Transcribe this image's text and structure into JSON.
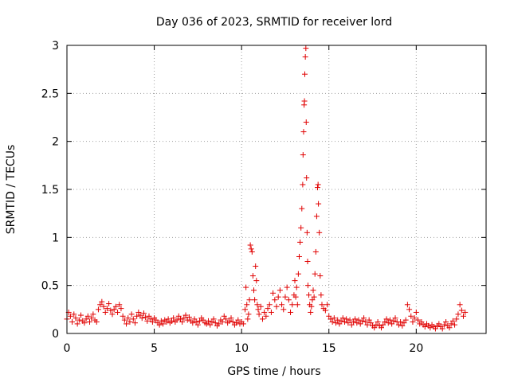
{
  "chart_data": {
    "type": "scatter",
    "title": "Day 036 of 2023, SRMTID for receiver lord",
    "xlabel": "GPS time / hours",
    "ylabel": "SRMTID / TECUs",
    "xlim": [
      0,
      24
    ],
    "ylim": [
      0,
      3
    ],
    "xticks": [
      0,
      5,
      10,
      15,
      20
    ],
    "xtick_labels": [
      "0",
      "5",
      "10",
      "15",
      "20"
    ],
    "yticks": [
      0,
      0.5,
      1,
      1.5,
      2,
      2.5,
      3
    ],
    "ytick_labels": [
      "0",
      "0.5",
      "1",
      "1.5",
      "2",
      "2.5",
      "3"
    ],
    "grid": true,
    "marker": "+",
    "color": "#e00000",
    "series": [
      {
        "name": "SRMTID",
        "points": [
          [
            0.0,
            0.15
          ],
          [
            0.1,
            0.22
          ],
          [
            0.2,
            0.18
          ],
          [
            0.3,
            0.12
          ],
          [
            0.4,
            0.2
          ],
          [
            0.5,
            0.16
          ],
          [
            0.6,
            0.1
          ],
          [
            0.7,
            0.14
          ],
          [
            0.8,
            0.19
          ],
          [
            0.9,
            0.13
          ],
          [
            1.0,
            0.11
          ],
          [
            1.1,
            0.15
          ],
          [
            1.2,
            0.18
          ],
          [
            1.3,
            0.12
          ],
          [
            1.4,
            0.16
          ],
          [
            1.5,
            0.2
          ],
          [
            1.6,
            0.14
          ],
          [
            1.7,
            0.12
          ],
          [
            1.8,
            0.25
          ],
          [
            1.9,
            0.3
          ],
          [
            2.0,
            0.33
          ],
          [
            2.1,
            0.28
          ],
          [
            2.2,
            0.22
          ],
          [
            2.3,
            0.26
          ],
          [
            2.4,
            0.31
          ],
          [
            2.5,
            0.24
          ],
          [
            2.6,
            0.2
          ],
          [
            2.7,
            0.25
          ],
          [
            2.8,
            0.28
          ],
          [
            2.9,
            0.22
          ],
          [
            3.0,
            0.3
          ],
          [
            3.1,
            0.26
          ],
          [
            3.2,
            0.18
          ],
          [
            3.3,
            0.14
          ],
          [
            3.4,
            0.1
          ],
          [
            3.5,
            0.16
          ],
          [
            3.6,
            0.12
          ],
          [
            3.7,
            0.2
          ],
          [
            3.8,
            0.15
          ],
          [
            3.9,
            0.11
          ],
          [
            4.0,
            0.18
          ],
          [
            4.1,
            0.22
          ],
          [
            4.2,
            0.19
          ],
          [
            4.3,
            0.16
          ],
          [
            4.4,
            0.21
          ],
          [
            4.5,
            0.17
          ],
          [
            4.6,
            0.13
          ],
          [
            4.7,
            0.18
          ],
          [
            4.8,
            0.15
          ],
          [
            4.9,
            0.12
          ],
          [
            5.0,
            0.16
          ],
          [
            5.1,
            0.14
          ],
          [
            5.2,
            0.11
          ],
          [
            5.3,
            0.09
          ],
          [
            5.4,
            0.13
          ],
          [
            5.5,
            0.1
          ],
          [
            5.6,
            0.14
          ],
          [
            5.7,
            0.12
          ],
          [
            5.8,
            0.15
          ],
          [
            5.9,
            0.11
          ],
          [
            6.0,
            0.13
          ],
          [
            6.1,
            0.16
          ],
          [
            6.2,
            0.12
          ],
          [
            6.3,
            0.14
          ],
          [
            6.4,
            0.18
          ],
          [
            6.5,
            0.15
          ],
          [
            6.6,
            0.12
          ],
          [
            6.7,
            0.16
          ],
          [
            6.8,
            0.19
          ],
          [
            6.9,
            0.14
          ],
          [
            7.0,
            0.17
          ],
          [
            7.1,
            0.13
          ],
          [
            7.2,
            0.11
          ],
          [
            7.3,
            0.15
          ],
          [
            7.4,
            0.12
          ],
          [
            7.5,
            0.09
          ],
          [
            7.6,
            0.13
          ],
          [
            7.7,
            0.16
          ],
          [
            7.8,
            0.14
          ],
          [
            7.9,
            0.11
          ],
          [
            8.0,
            0.1
          ],
          [
            8.1,
            0.13
          ],
          [
            8.2,
            0.09
          ],
          [
            8.3,
            0.12
          ],
          [
            8.4,
            0.15
          ],
          [
            8.5,
            0.11
          ],
          [
            8.6,
            0.08
          ],
          [
            8.7,
            0.1
          ],
          [
            8.8,
            0.14
          ],
          [
            8.9,
            0.12
          ],
          [
            9.0,
            0.18
          ],
          [
            9.1,
            0.15
          ],
          [
            9.2,
            0.11
          ],
          [
            9.3,
            0.13
          ],
          [
            9.4,
            0.16
          ],
          [
            9.5,
            0.12
          ],
          [
            9.6,
            0.09
          ],
          [
            9.7,
            0.11
          ],
          [
            9.8,
            0.14
          ],
          [
            9.9,
            0.1
          ],
          [
            10.0,
            0.12
          ],
          [
            10.1,
            0.1
          ],
          [
            10.2,
            0.25
          ],
          [
            10.25,
            0.48
          ],
          [
            10.3,
            0.3
          ],
          [
            10.35,
            0.15
          ],
          [
            10.4,
            0.2
          ],
          [
            10.45,
            0.35
          ],
          [
            10.5,
            0.92
          ],
          [
            10.55,
            0.88
          ],
          [
            10.6,
            0.85
          ],
          [
            10.65,
            0.6
          ],
          [
            10.7,
            0.45
          ],
          [
            10.75,
            0.35
          ],
          [
            10.8,
            0.7
          ],
          [
            10.85,
            0.55
          ],
          [
            10.9,
            0.3
          ],
          [
            10.95,
            0.25
          ],
          [
            11.0,
            0.2
          ],
          [
            11.1,
            0.28
          ],
          [
            11.2,
            0.15
          ],
          [
            11.3,
            0.22
          ],
          [
            11.4,
            0.18
          ],
          [
            11.5,
            0.26
          ],
          [
            11.6,
            0.3
          ],
          [
            11.7,
            0.22
          ],
          [
            11.8,
            0.42
          ],
          [
            11.9,
            0.35
          ],
          [
            12.0,
            0.28
          ],
          [
            12.1,
            0.38
          ],
          [
            12.2,
            0.45
          ],
          [
            12.3,
            0.3
          ],
          [
            12.4,
            0.25
          ],
          [
            12.5,
            0.38
          ],
          [
            12.6,
            0.48
          ],
          [
            12.7,
            0.35
          ],
          [
            12.8,
            0.22
          ],
          [
            12.9,
            0.3
          ],
          [
            13.0,
            0.4
          ],
          [
            13.05,
            0.55
          ],
          [
            13.1,
            0.38
          ],
          [
            13.15,
            0.48
          ],
          [
            13.2,
            0.3
          ],
          [
            13.25,
            0.62
          ],
          [
            13.3,
            0.8
          ],
          [
            13.35,
            0.95
          ],
          [
            13.4,
            1.1
          ],
          [
            13.45,
            1.3
          ],
          [
            13.5,
            1.55
          ],
          [
            13.52,
            1.86
          ],
          [
            13.55,
            2.1
          ],
          [
            13.58,
            2.38
          ],
          [
            13.6,
            2.42
          ],
          [
            13.62,
            2.7
          ],
          [
            13.65,
            2.88
          ],
          [
            13.68,
            2.97
          ],
          [
            13.7,
            2.2
          ],
          [
            13.72,
            1.62
          ],
          [
            13.75,
            1.05
          ],
          [
            13.78,
            0.75
          ],
          [
            13.8,
            0.5
          ],
          [
            13.85,
            0.4
          ],
          [
            13.9,
            0.3
          ],
          [
            13.95,
            0.22
          ],
          [
            14.0,
            0.28
          ],
          [
            14.05,
            0.35
          ],
          [
            14.1,
            0.45
          ],
          [
            14.15,
            0.38
          ],
          [
            14.2,
            0.62
          ],
          [
            14.25,
            0.85
          ],
          [
            14.3,
            1.22
          ],
          [
            14.35,
            1.52
          ],
          [
            14.38,
            1.55
          ],
          [
            14.4,
            1.35
          ],
          [
            14.45,
            1.05
          ],
          [
            14.5,
            0.6
          ],
          [
            14.55,
            0.4
          ],
          [
            14.6,
            0.3
          ],
          [
            14.7,
            0.26
          ],
          [
            14.8,
            0.24
          ],
          [
            14.9,
            0.3
          ],
          [
            15.0,
            0.18
          ],
          [
            15.1,
            0.15
          ],
          [
            15.2,
            0.12
          ],
          [
            15.3,
            0.16
          ],
          [
            15.4,
            0.11
          ],
          [
            15.5,
            0.14
          ],
          [
            15.6,
            0.1
          ],
          [
            15.7,
            0.13
          ],
          [
            15.8,
            0.16
          ],
          [
            15.9,
            0.12
          ],
          [
            16.0,
            0.15
          ],
          [
            16.1,
            0.11
          ],
          [
            16.2,
            0.14
          ],
          [
            16.3,
            0.09
          ],
          [
            16.4,
            0.12
          ],
          [
            16.5,
            0.15
          ],
          [
            16.6,
            0.11
          ],
          [
            16.7,
            0.14
          ],
          [
            16.8,
            0.1
          ],
          [
            16.9,
            0.13
          ],
          [
            17.0,
            0.16
          ],
          [
            17.1,
            0.12
          ],
          [
            17.2,
            0.09
          ],
          [
            17.3,
            0.14
          ],
          [
            17.4,
            0.11
          ],
          [
            17.5,
            0.08
          ],
          [
            17.6,
            0.06
          ],
          [
            17.7,
            0.09
          ],
          [
            17.8,
            0.12
          ],
          [
            17.9,
            0.08
          ],
          [
            18.0,
            0.06
          ],
          [
            18.1,
            0.09
          ],
          [
            18.2,
            0.12
          ],
          [
            18.3,
            0.15
          ],
          [
            18.4,
            0.11
          ],
          [
            18.5,
            0.14
          ],
          [
            18.6,
            0.1
          ],
          [
            18.7,
            0.13
          ],
          [
            18.8,
            0.16
          ],
          [
            18.9,
            0.12
          ],
          [
            19.0,
            0.09
          ],
          [
            19.1,
            0.12
          ],
          [
            19.2,
            0.08
          ],
          [
            19.3,
            0.11
          ],
          [
            19.4,
            0.14
          ],
          [
            19.5,
            0.3
          ],
          [
            19.6,
            0.25
          ],
          [
            19.7,
            0.18
          ],
          [
            19.8,
            0.12
          ],
          [
            19.9,
            0.16
          ],
          [
            20.0,
            0.22
          ],
          [
            20.1,
            0.14
          ],
          [
            20.2,
            0.1
          ],
          [
            20.3,
            0.12
          ],
          [
            20.4,
            0.09
          ],
          [
            20.5,
            0.07
          ],
          [
            20.6,
            0.1
          ],
          [
            20.7,
            0.08
          ],
          [
            20.8,
            0.06
          ],
          [
            20.9,
            0.09
          ],
          [
            21.0,
            0.07
          ],
          [
            21.1,
            0.05
          ],
          [
            21.2,
            0.08
          ],
          [
            21.3,
            0.1
          ],
          [
            21.4,
            0.07
          ],
          [
            21.5,
            0.05
          ],
          [
            21.6,
            0.09
          ],
          [
            21.7,
            0.12
          ],
          [
            21.8,
            0.08
          ],
          [
            21.9,
            0.06
          ],
          [
            22.0,
            0.1
          ],
          [
            22.1,
            0.13
          ],
          [
            22.2,
            0.09
          ],
          [
            22.3,
            0.15
          ],
          [
            22.4,
            0.2
          ],
          [
            22.5,
            0.3
          ],
          [
            22.6,
            0.24
          ],
          [
            22.7,
            0.18
          ],
          [
            22.8,
            0.22
          ]
        ]
      }
    ]
  }
}
